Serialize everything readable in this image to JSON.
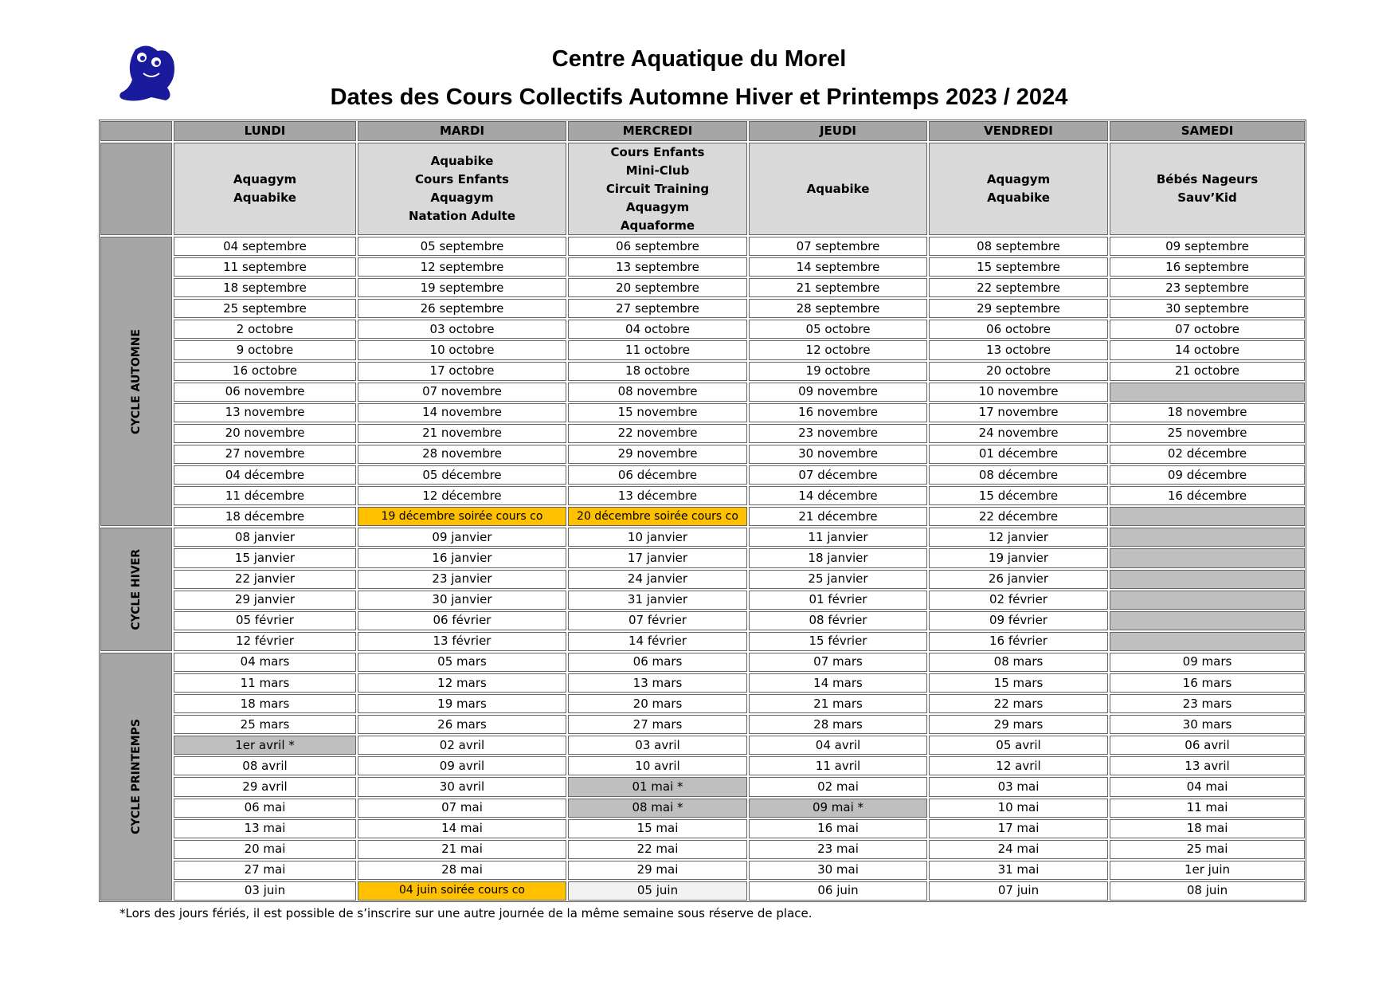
{
  "header": {
    "title": "Centre Aquatique du Morel",
    "subtitle": "Dates des Cours Collectifs Automne Hiver et Printemps 2023 / 2024"
  },
  "table": {
    "days": [
      "LUNDI",
      "MARDI",
      "MERCREDI",
      "JEUDI",
      "VENDREDI",
      "SAMEDI"
    ],
    "activities": [
      [
        "Aquagym",
        "Aquabike"
      ],
      [
        "Aquabike",
        "Cours Enfants",
        "Aquagym",
        "Natation Adulte"
      ],
      [
        "Cours Enfants",
        "Mini-Club",
        "Circuit Training",
        "Aquagym",
        "Aquaforme"
      ],
      [
        "Aquabike"
      ],
      [
        "Aquagym",
        "Aquabike"
      ],
      [
        "Bébés Nageurs",
        "Sauv’Kid"
      ]
    ],
    "header_fill": "#a6a6a6",
    "activity_fill": "#d9d9d9",
    "cycle_fill": "#a6a6a6",
    "empty_cell_fill": "#bfbfbf",
    "cycles": [
      {
        "name": "CYCLE AUTOMNE",
        "rows": [
          [
            "04 septembre",
            "05 septembre",
            "06 septembre",
            "07 septembre",
            "08 septembre",
            "09 septembre"
          ],
          [
            "11 septembre",
            "12 septembre",
            "13 septembre",
            "14 septembre",
            "15 septembre",
            "16 septembre"
          ],
          [
            "18 septembre",
            "19 septembre",
            "20 septembre",
            "21 septembre",
            "22 septembre",
            "23 septembre"
          ],
          [
            "25 septembre",
            "26 septembre",
            "27 septembre",
            "28 septembre",
            "29 septembre",
            "30 septembre"
          ],
          [
            "2 octobre",
            "03 octobre",
            "04 octobre",
            "05 octobre",
            "06 octobre",
            "07 octobre"
          ],
          [
            "9 octobre",
            "10 octobre",
            "11 octobre",
            "12 octobre",
            "13 octobre",
            "14 octobre"
          ],
          [
            "16 octobre",
            "17 octobre",
            "18 octobre",
            "19 octobre",
            "20 octobre",
            "21 octobre"
          ],
          [
            "06 novembre",
            "07 novembre",
            "08 novembre",
            "09 novembre",
            "10 novembre",
            null
          ],
          [
            "13 novembre",
            "14 novembre",
            "15 novembre",
            "16 novembre",
            "17 novembre",
            "18 novembre"
          ],
          [
            "20 novembre",
            "21 novembre",
            "22 novembre",
            "23 novembre",
            "24 novembre",
            "25 novembre"
          ],
          [
            "27 novembre",
            "28 novembre",
            "29 novembre",
            "30 novembre",
            "01 décembre",
            "02 décembre"
          ],
          [
            "04 décembre",
            "05 décembre",
            "06 décembre",
            "07 décembre",
            "08 décembre",
            "09 décembre"
          ],
          [
            "11 décembre",
            "12 décembre",
            "13 décembre",
            "14 décembre",
            "15 décembre",
            "16 décembre"
          ],
          [
            "18 décembre",
            {
              "text": "19 décembre soirée cours co",
              "fill": "#ffc000"
            },
            {
              "text": "20 décembre soirée cours co",
              "fill": "#ffc000"
            },
            "21 décembre",
            "22 décembre",
            null
          ]
        ]
      },
      {
        "name": "CYCLE HIVER",
        "rows": [
          [
            "08 janvier",
            "09 janvier",
            "10 janvier",
            "11 janvier",
            "12 janvier",
            null
          ],
          [
            "15 janvier",
            "16 janvier",
            "17 janvier",
            "18 janvier",
            "19 janvier",
            null
          ],
          [
            "22 janvier",
            "23 janvier",
            "24 janvier",
            "25 janvier",
            "26 janvier",
            null
          ],
          [
            "29 janvier",
            "30 janvier",
            "31 janvier",
            "01 février",
            "02 février",
            null
          ],
          [
            "05 février",
            "06 février",
            "07 février",
            "08 février",
            "09 février",
            null
          ],
          [
            "12 février",
            "13 février",
            "14 février",
            "15 février",
            "16 février",
            null
          ]
        ]
      },
      {
        "name": "CYCLE PRINTEMPS",
        "rows": [
          [
            "04 mars",
            "05 mars",
            "06 mars",
            "07 mars",
            "08 mars",
            "09 mars"
          ],
          [
            "11 mars",
            "12 mars",
            "13 mars",
            "14 mars",
            "15 mars",
            "16 mars"
          ],
          [
            "18 mars",
            "19 mars",
            "20 mars",
            "21 mars",
            "22 mars",
            "23 mars"
          ],
          [
            "25 mars",
            "26 mars",
            "27 mars",
            "28 mars",
            "29 mars",
            "30 mars"
          ],
          [
            {
              "text": "1er avril *",
              "fill": "#bfbfbf"
            },
            "02 avril",
            "03 avril",
            "04 avril",
            "05 avril",
            "06 avril"
          ],
          [
            "08 avril",
            "09 avril",
            "10 avril",
            "11 avril",
            "12 avril",
            "13 avril"
          ],
          [
            "29 avril",
            "30 avril",
            {
              "text": "01 mai *",
              "fill": "#bfbfbf"
            },
            "02 mai",
            "03 mai",
            "04 mai"
          ],
          [
            "06 mai",
            "07 mai",
            {
              "text": "08 mai *",
              "fill": "#bfbfbf"
            },
            {
              "text": "09 mai *",
              "fill": "#bfbfbf"
            },
            "10 mai",
            "11 mai"
          ],
          [
            "13 mai",
            "14 mai",
            "15 mai",
            "16 mai",
            "17 mai",
            "18 mai"
          ],
          [
            "20 mai",
            "21 mai",
            "22 mai",
            "23 mai",
            "24 mai",
            "25 mai"
          ],
          [
            "27 mai",
            "28 mai",
            "29 mai",
            "30 mai",
            "31 mai",
            "1er juin"
          ],
          [
            "03 juin",
            {
              "text": "04 juin soirée cours co",
              "fill": "#ffc000"
            },
            {
              "text": "05 juin",
              "fill": "#f2f2f2"
            },
            "06 juin",
            "07 juin",
            "08 juin"
          ]
        ]
      }
    ]
  },
  "footnote": "*Lors des jours fériés, il est possible de s’inscrire sur une autre journée de la même semaine sous réserve de place."
}
